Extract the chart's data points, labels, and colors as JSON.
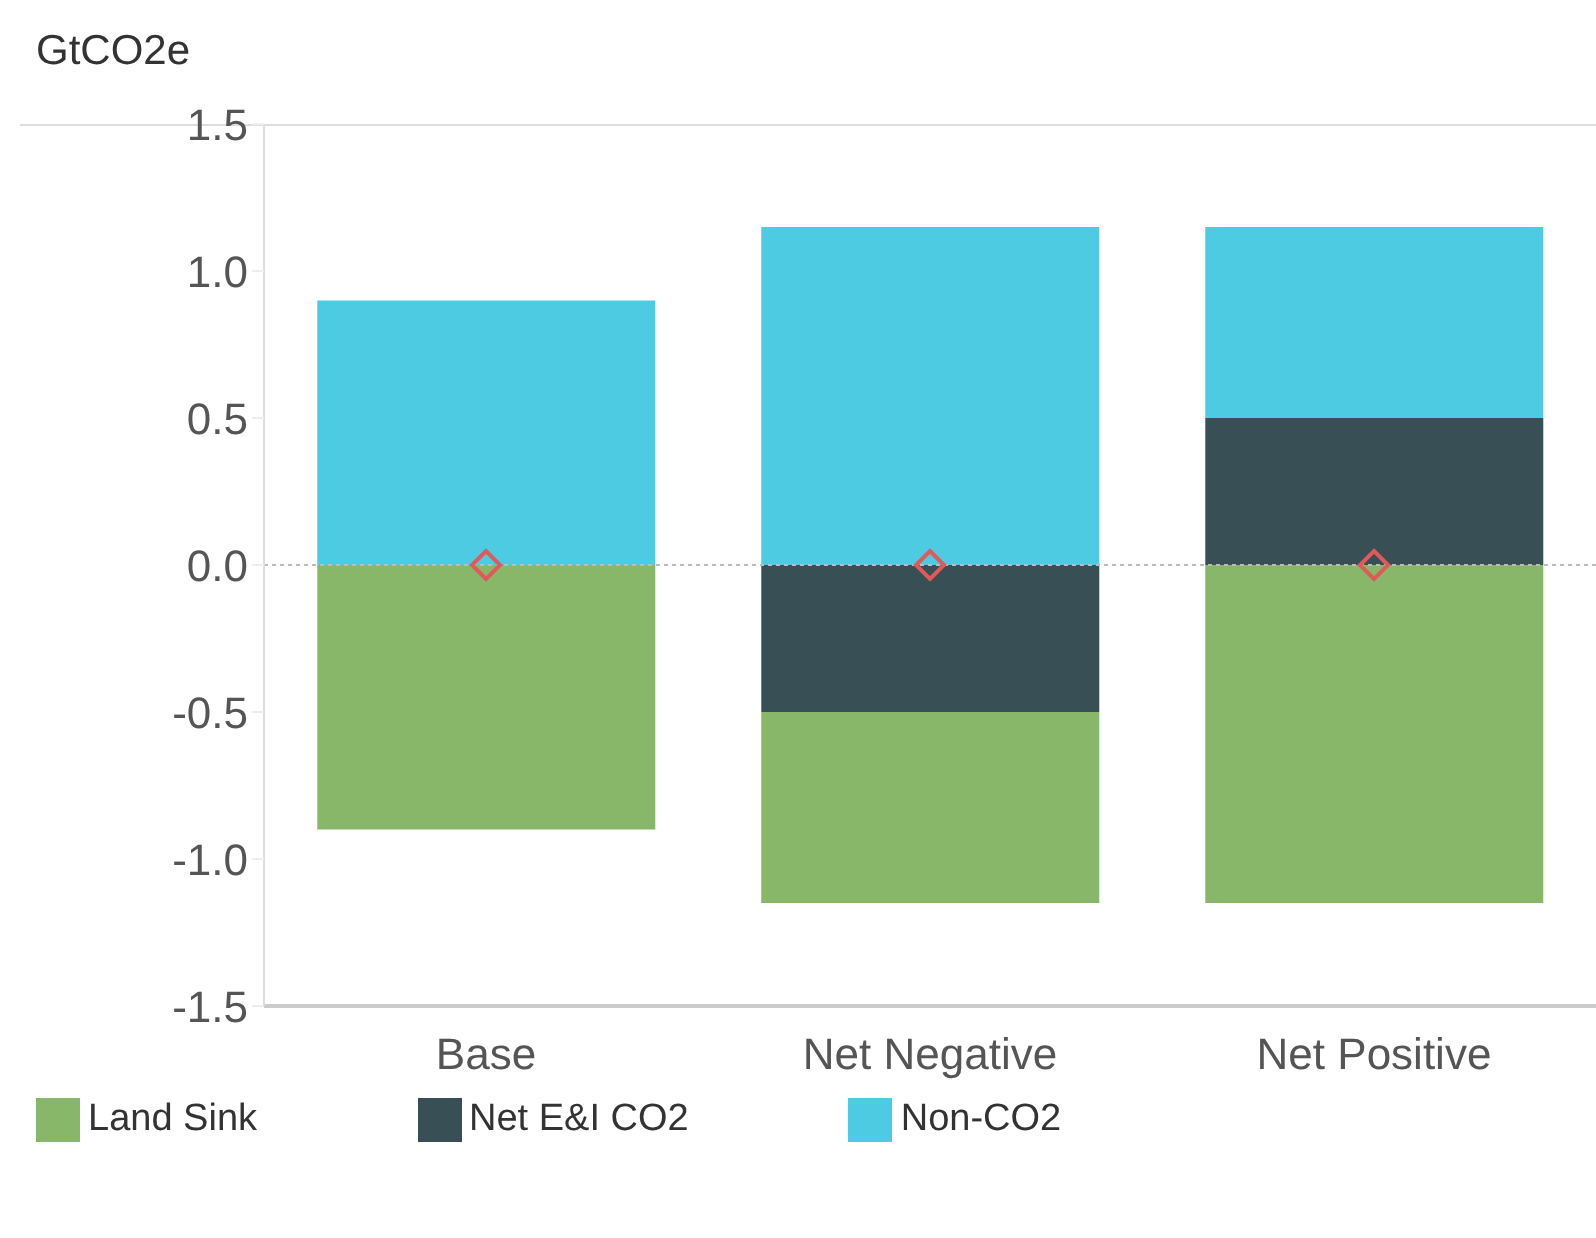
{
  "chart_data": {
    "type": "bar",
    "ylabel": "GtCO2e",
    "categories": [
      "Base",
      "Net Negative",
      "Net Positive"
    ],
    "stacked": true,
    "series": [
      {
        "name": "Net E&I CO2",
        "color": "#374f55",
        "values": [
          0,
          -0.5,
          0.5
        ]
      },
      {
        "name": "Land Sink",
        "color": "#88b769",
        "values": [
          -0.9,
          -0.65,
          -1.15
        ]
      },
      {
        "name": "Non-CO2",
        "color": "#4ccbe3",
        "values": [
          0.9,
          1.15,
          0.65
        ]
      },
      {
        "type": "scatter",
        "color": "#e05a5a",
        "values": [
          0,
          0,
          0
        ],
        "marker": "diamond"
      }
    ],
    "ylim": [
      -1.5,
      1.5
    ],
    "yticks": [
      {
        "value": -1.5,
        "label": "-1.5"
      },
      {
        "value": -1,
        "label": "-1.0"
      },
      {
        "value": -0.5,
        "label": "-0.5"
      },
      {
        "value": 0,
        "label": "0.0"
      },
      {
        "value": 0.5,
        "label": "0.5"
      },
      {
        "value": 1,
        "label": "1.0"
      },
      {
        "value": 1.5,
        "label": "1.5"
      }
    ],
    "ref_lines": [
      {
        "axis": "y",
        "value": 0,
        "color": "#bbbbbb",
        "line_style": "dotted"
      }
    ],
    "grid": false,
    "legend": "bottom"
  }
}
